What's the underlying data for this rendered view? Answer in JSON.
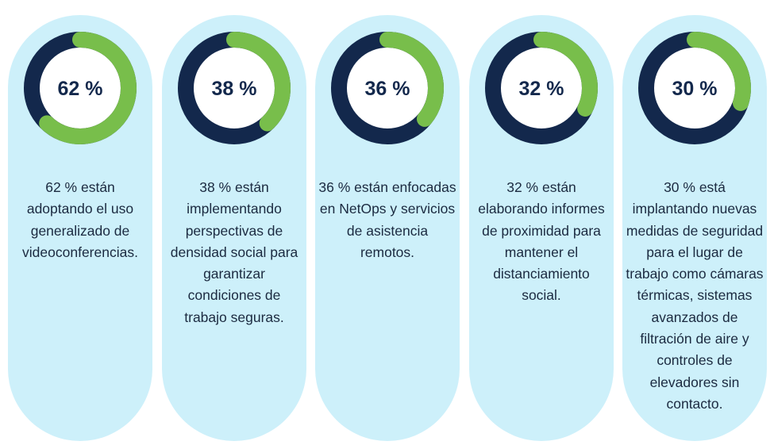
{
  "chart_data": {
    "type": "donut",
    "colors": {
      "filled": "#78be4b",
      "remaining": "#13284c",
      "card": "#cdf0fa"
    },
    "items": [
      {
        "value": 62,
        "label": "62 %",
        "text": "62 % están adoptando el uso generalizado de videoconferencias."
      },
      {
        "value": 38,
        "label": "38 %",
        "text": "38 % están implementando perspectivas de densidad social para garantizar condiciones de trabajo seguras."
      },
      {
        "value": 36,
        "label": "36 %",
        "text": "36 % están enfocadas en NetOps y servicios de asistencia remotos."
      },
      {
        "value": 32,
        "label": "32 %",
        "text": "32 % están elaborando informes de proximidad para mantener el distanciamiento social."
      },
      {
        "value": 30,
        "label": "30 %",
        "text": "30 % está implantando nuevas medidas de seguridad para el lugar de trabajo como cámaras térmicas, sistemas avanzados de filtración de aire y controles de elevadores sin contacto."
      }
    ]
  }
}
